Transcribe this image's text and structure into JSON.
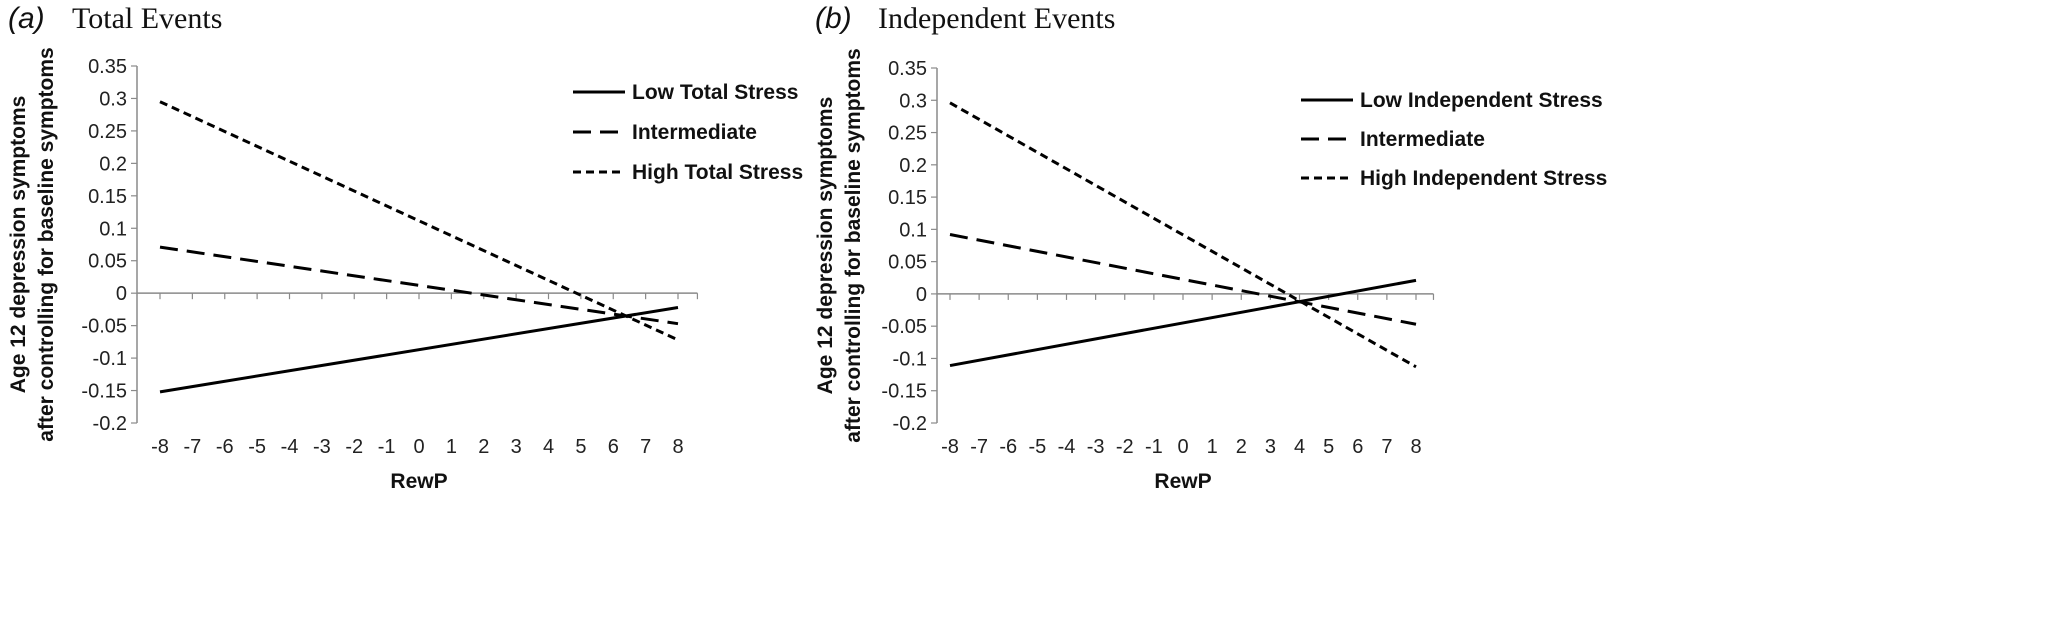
{
  "chart_data": [
    {
      "type": "line",
      "panel_label": "(a)",
      "title": "Total Events",
      "xlabel": "RewP",
      "ylabel_lines": [
        "Age 12 depression symptoms",
        "after controlling for baseline symptoms"
      ],
      "x": [
        -8,
        -7,
        -6,
        -5,
        -4,
        -3,
        -2,
        -1,
        0,
        1,
        2,
        3,
        4,
        5,
        6,
        7,
        8
      ],
      "ylim": [
        -0.2,
        0.35
      ],
      "yticks": [
        "-0.2",
        "-0.15",
        "-0.1",
        "-0.05",
        "0",
        "0.05",
        "0.1",
        "0.15",
        "0.2",
        "0.25",
        "0.3",
        "0.35"
      ],
      "grid": false,
      "legend_position": "top-right",
      "series": [
        {
          "name": "Low Total Stress",
          "style": "solid",
          "x": [
            -8,
            8
          ],
          "values": [
            -0.152,
            -0.022
          ]
        },
        {
          "name": "Intermediate",
          "style": "long-dash",
          "x": [
            -8,
            8
          ],
          "values": [
            0.071,
            -0.047
          ]
        },
        {
          "name": "High Total Stress",
          "style": "short-dash",
          "x": [
            -8,
            8
          ],
          "values": [
            0.295,
            -0.072
          ]
        }
      ]
    },
    {
      "type": "line",
      "panel_label": "(b)",
      "title": "Independent Events",
      "xlabel": "RewP",
      "ylabel_lines": [
        "Age 12 depression symptoms",
        "after controlling for baseline symptoms"
      ],
      "x": [
        -8,
        -7,
        -6,
        -5,
        -4,
        -3,
        -2,
        -1,
        0,
        1,
        2,
        3,
        4,
        5,
        6,
        7,
        8
      ],
      "ylim": [
        -0.2,
        0.35
      ],
      "yticks": [
        "-0.2",
        "-0.15",
        "-0.1",
        "-0.05",
        "0",
        "0.05",
        "0.1",
        "0.15",
        "0.2",
        "0.25",
        "0.3",
        "0.35"
      ],
      "grid": false,
      "legend_position": "top-right",
      "series": [
        {
          "name": "Low Independent Stress",
          "style": "solid",
          "x": [
            -8,
            8
          ],
          "values": [
            -0.111,
            0.021
          ]
        },
        {
          "name": "Intermediate",
          "style": "long-dash",
          "x": [
            -8,
            8
          ],
          "values": [
            0.092,
            -0.047
          ]
        },
        {
          "name": "High Independent Stress",
          "style": "short-dash",
          "x": [
            -8,
            8
          ],
          "values": [
            0.296,
            -0.113
          ]
        }
      ]
    }
  ]
}
